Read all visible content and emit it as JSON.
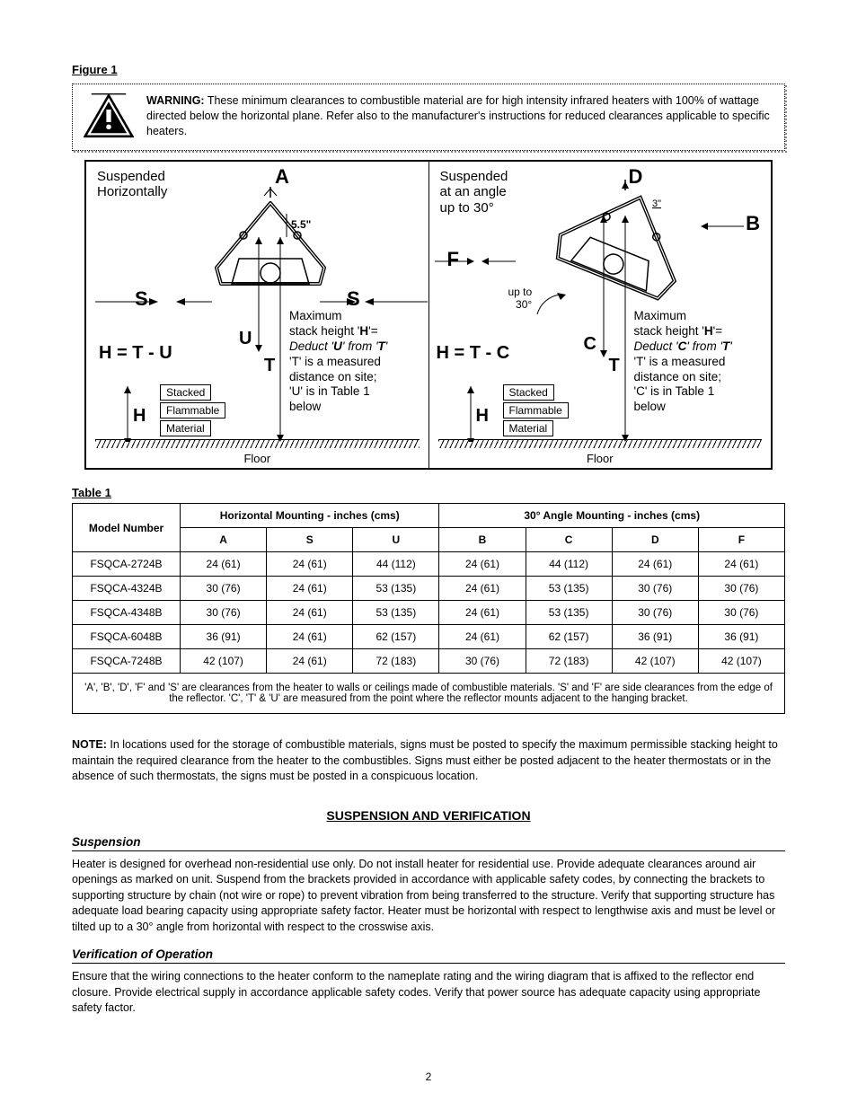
{
  "figure": {
    "label": "Figure 1",
    "warning_title": "WARNING:",
    "warning_text": "These minimum clearances to combustible material are for high intensity infrared heaters with 100% of wattage directed below the horizontal plane. Refer also to the manufacturer's instructions for reduced clearances applicable to specific heaters.",
    "left": {
      "sub1": "Suspended",
      "sub2": "Horizontally",
      "A": "A",
      "S": "S",
      "U": "U",
      "T": "T",
      "H": "H",
      "angle_dim": "5.5\"",
      "formula": "H = T - U",
      "note1": "Maximum",
      "note2": "stack height '",
      "note2b": "'=",
      "note3a": "Deduct '",
      "note3b": "' from '",
      "note3c": "'",
      "note4": "'T' is a measured",
      "note5": "distance on site;",
      "note6": "'U' is in Table 1",
      "note7": "below",
      "stack1": "Stacked",
      "stack2": "Flammable",
      "stack3": "Material",
      "floor": "Floor"
    },
    "right": {
      "sub1": "Suspended",
      "sub2": "at an angle",
      "sub3": "up to 30°",
      "D": "D",
      "B": "B",
      "F": "F",
      "C": "C",
      "T": "T",
      "H": "H",
      "three": "3\"",
      "upto": "up to",
      "thirty": "30°",
      "formula": "H = T - C",
      "note1": "Maximum",
      "note2": "stack height '",
      "note2b": "'=",
      "note3a": "Deduct '",
      "note3b": "' from '",
      "note3c": "'",
      "note4": "'T' is a measured",
      "note5": "distance on site;",
      "note6": "'C' is in Table 1",
      "note7": "below",
      "stack1": "Stacked",
      "stack2": "Flammable",
      "stack3": "Material",
      "floor": "Floor"
    }
  },
  "table": {
    "label": "Table 1",
    "head": {
      "model": "Model Number",
      "horiz": "Horizontal Mounting - inches (cms)",
      "angled": "30° Angle Mounting - inches (cms)",
      "A": "A",
      "S": "S",
      "U": "U",
      "B": "B",
      "C": "C",
      "D": "D",
      "F": "F"
    },
    "rows": [
      {
        "model": "FSQCA-2724B",
        "A": "24 (61)",
        "S": "24 (61)",
        "U": "44 (112)",
        "B": "24 (61)",
        "C": "44 (112)",
        "D": "24 (61)",
        "F": "24 (61)"
      },
      {
        "model": "FSQCA-4324B",
        "A": "30 (76)",
        "S": "24 (61)",
        "U": "53 (135)",
        "B": "24 (61)",
        "C": "53 (135)",
        "D": "30 (76)",
        "F": "30 (76)"
      },
      {
        "model": "FSQCA-4348B",
        "A": "30 (76)",
        "S": "24 (61)",
        "U": "53 (135)",
        "B": "24 (61)",
        "C": "53 (135)",
        "D": "30 (76)",
        "F": "30 (76)"
      },
      {
        "model": "FSQCA-6048B",
        "A": "36 (91)",
        "S": "24 (61)",
        "U": "62 (157)",
        "B": "24 (61)",
        "C": "62 (157)",
        "D": "36 (91)",
        "F": "36 (91)"
      },
      {
        "model": "FSQCA-7248B",
        "A": "42 (107)",
        "S": "24 (61)",
        "U": "72 (183)",
        "B": "30 (76)",
        "C": "72 (183)",
        "D": "42 (107)",
        "F": "42 (107)"
      }
    ],
    "footnote": "'A', 'B', 'D', 'F' and 'S' are clearances from the heater to walls or ceilings made of combustible materials. 'S' and 'F' are side clearances from the edge of the reflector.  'C', 'T' & 'U' are measured from the point where the reflector mounts adjacent to the hanging bracket."
  },
  "note": {
    "lead": "NOTE:",
    "body": "In locations used for the storage of combustible materials, signs must be posted to specify the maximum permissible stacking height to maintain the required clearance from the heater to the combustibles.  Signs must either be posted adjacent to the heater thermostats or in the absence of such thermostats, the signs must be posted in a conspicuous location."
  },
  "sv": {
    "title": "SUSPENSION AND VERIFICATION",
    "h1": "Suspension",
    "p1": "Heater is designed for overhead non-residential use only.  Do not install heater for residential use.  Provide adequate clearances around air openings as marked on unit.  Suspend from the brackets provided in accordance with applicable safety codes, by connecting the brackets to supporting structure by chain (not wire or rope) to prevent vibration from being transferred to the structure.  Verify that supporting structure has adequate load bearing capacity using appropriate safety factor.  Heater must be horizontal with respect to lengthwise axis and must be level or tilted up to a 30° angle from horizontal with respect to the crosswise axis.",
    "h2": "Verification of Operation",
    "p2": "Ensure that the wiring connections to the heater conform to the nameplate rating and the wiring diagram that is affixed to the reflector end closure. Provide electrical supply in accordance applicable safety codes.  Verify that power source has adequate capacity using appropriate safety factor."
  },
  "page": "2",
  "colors": {
    "text": "#000000",
    "bg": "#ffffff",
    "shadow": "#888888"
  }
}
